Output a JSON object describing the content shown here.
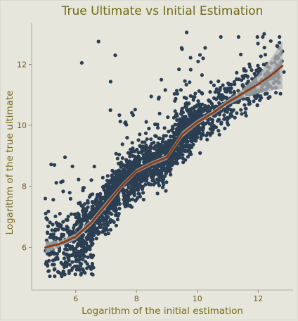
{
  "chart_data": {
    "type": "scatter",
    "title": "True Ultimate vs Initial Estimation",
    "xlabel": "Logarithm of the initial estimation",
    "ylabel": "Logarithm of the true ultimate",
    "xlim": [
      4.55,
      13.15
    ],
    "ylim": [
      4.6,
      13.35
    ],
    "x_ticks": [
      6,
      8,
      10,
      12
    ],
    "y_ticks": [
      6,
      8,
      10,
      12
    ],
    "grid": false,
    "legend": "none",
    "point_count_estimate": 2400,
    "colors": {
      "background": "#e6e6dd",
      "points": "#2b3e52",
      "smooth_line": "#8b3a12",
      "confidence_band": "#b3b3b3",
      "text": "#7a6a1e"
    },
    "smooth_fit": {
      "x": [
        5.0,
        5.5,
        6.0,
        6.5,
        7.0,
        7.5,
        8.0,
        8.5,
        9.0,
        9.5,
        10.0,
        10.5,
        11.0,
        11.5,
        12.0,
        12.5,
        12.8
      ],
      "y": [
        6.0,
        6.12,
        6.35,
        6.8,
        7.4,
        8.0,
        8.5,
        8.75,
        8.95,
        9.7,
        10.1,
        10.4,
        10.75,
        11.05,
        11.35,
        11.7,
        11.95
      ],
      "band_upper": [
        6.2,
        6.22,
        6.45,
        6.9,
        7.5,
        8.08,
        8.57,
        8.82,
        9.03,
        9.8,
        10.18,
        10.48,
        10.84,
        11.2,
        11.65,
        12.3,
        12.75
      ],
      "band_lower": [
        5.8,
        6.02,
        6.25,
        6.7,
        7.3,
        7.92,
        8.43,
        8.68,
        8.87,
        9.6,
        10.02,
        10.32,
        10.66,
        10.9,
        11.05,
        11.15,
        11.2
      ]
    },
    "notable_points": [
      {
        "x": 9.65,
        "y": 13.05
      },
      {
        "x": 12.2,
        "y": 13.0
      },
      {
        "x": 6.75,
        "y": 12.75
      },
      {
        "x": 6.2,
        "y": 12.05
      },
      {
        "x": 12.85,
        "y": 11.75
      },
      {
        "x": 5.3,
        "y": 8.7
      },
      {
        "x": 5.0,
        "y": 7.6
      },
      {
        "x": 7.3,
        "y": 12.3
      },
      {
        "x": 9.5,
        "y": 12.5
      }
    ]
  }
}
